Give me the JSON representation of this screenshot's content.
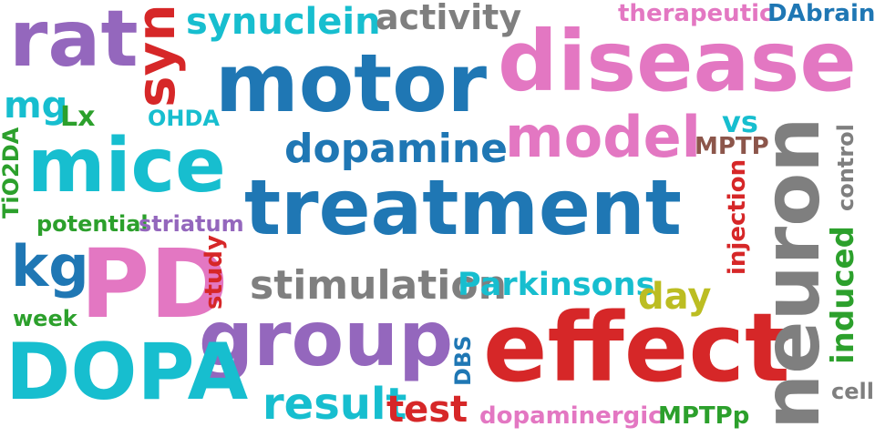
{
  "palette": {
    "blue": "#1f77b4",
    "pink": "#e377c2",
    "purple": "#9467bd",
    "red": "#d62728",
    "cyan": "#17becf",
    "gray": "#7f7f7f",
    "green": "#2ca02c",
    "olive": "#bcbd22",
    "brown": "#8c564b"
  },
  "words": {
    "treatment": {
      "text": "treatment",
      "color": "#1f77b4"
    },
    "motor": {
      "text": "motor",
      "color": "#1f77b4"
    },
    "disease": {
      "text": "disease",
      "color": "#e377c2"
    },
    "effect": {
      "text": "effect",
      "color": "#d62728"
    },
    "group": {
      "text": "group",
      "color": "#9467bd"
    },
    "pd": {
      "text": "PD",
      "color": "#e377c2"
    },
    "dopa": {
      "text": "DOPA",
      "color": "#17becf"
    },
    "mice": {
      "text": "mice",
      "color": "#17becf"
    },
    "rat": {
      "text": "rat",
      "color": "#9467bd"
    },
    "neuron": {
      "text": "neuron",
      "color": "#7f7f7f"
    },
    "model": {
      "text": "model",
      "color": "#e377c2"
    },
    "syn": {
      "text": "syn",
      "color": "#d62728"
    },
    "synuclein": {
      "text": "synuclein",
      "color": "#17becf"
    },
    "activity": {
      "text": "activity",
      "color": "#7f7f7f"
    },
    "therapeutic": {
      "text": "therapeutic",
      "color": "#e377c2"
    },
    "da": {
      "text": "DA",
      "color": "#1f77b4"
    },
    "brain": {
      "text": "brain",
      "color": "#1f77b4"
    },
    "dopamine": {
      "text": "dopamine",
      "color": "#1f77b4"
    },
    "stimulation": {
      "text": "stimulation",
      "color": "#7f7f7f"
    },
    "parkinsons": {
      "text": "Parkinsons",
      "color": "#17becf"
    },
    "result": {
      "text": "result",
      "color": "#17becf"
    },
    "test": {
      "text": "test",
      "color": "#d62728"
    },
    "dopaminergic": {
      "text": "dopaminergic",
      "color": "#e377c2"
    },
    "mptpp": {
      "text": "MPTPp",
      "color": "#2ca02c"
    },
    "kg": {
      "text": "kg",
      "color": "#1f77b4"
    },
    "mg": {
      "text": "mg",
      "color": "#17becf"
    },
    "lx": {
      "text": "Lx",
      "color": "#2ca02c"
    },
    "ohda": {
      "text": "OHDA",
      "color": "#17becf"
    },
    "vs": {
      "text": "vs",
      "color": "#17becf"
    },
    "mptp": {
      "text": "MPTP",
      "color": "#8c564b"
    },
    "control": {
      "text": "control",
      "color": "#7f7f7f"
    },
    "injection": {
      "text": "injection",
      "color": "#d62728"
    },
    "induced": {
      "text": "induced",
      "color": "#2ca02c"
    },
    "cell": {
      "text": "cell",
      "color": "#7f7f7f"
    },
    "day": {
      "text": "day",
      "color": "#bcbd22"
    },
    "potential": {
      "text": "potential",
      "color": "#2ca02c"
    },
    "striatum": {
      "text": "striatum",
      "color": "#9467bd"
    },
    "study": {
      "text": "study",
      "color": "#d62728"
    },
    "week": {
      "text": "week",
      "color": "#2ca02c"
    },
    "tio2da": {
      "text": "TiO2DA",
      "color": "#2ca02c"
    },
    "dbs": {
      "text": "DBS",
      "color": "#1f77b4"
    }
  }
}
